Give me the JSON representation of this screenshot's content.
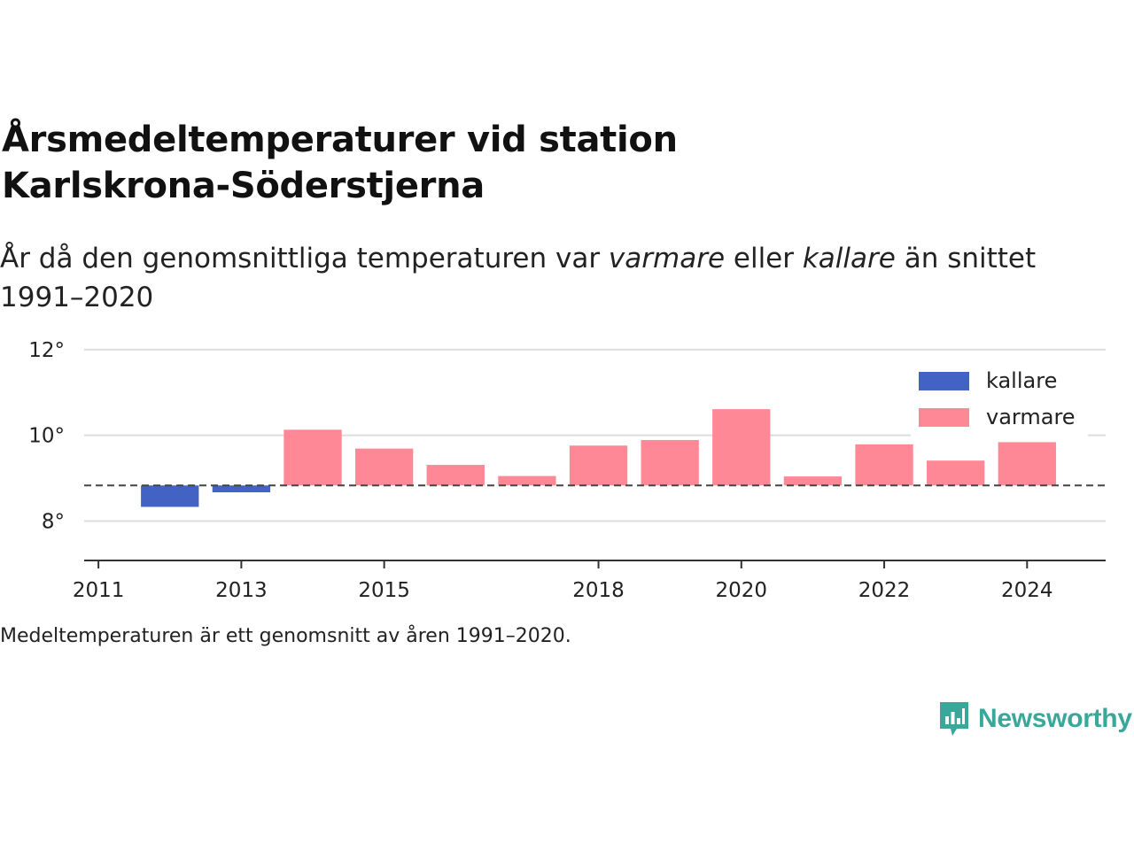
{
  "title_line1": "Årsmedeltemperaturer vid station",
  "title_line2": "Karlskrona-Söderstjerna",
  "subtitle": {
    "part1": "År då den genomsnittliga temperaturen var ",
    "warmer": "varmare",
    "part2": " eller ",
    "colder": "kallare",
    "part3": " än snittet 1991–2020"
  },
  "footnote": "Medeltemperaturen är ett genomsnitt av åren 1991–2020.",
  "logo": {
    "text": "Newsworthy",
    "icon": "newsworthy-chart-bubble-icon",
    "color": "#3aa79a"
  },
  "chart_data": {
    "type": "bar",
    "baseline": 8.83,
    "baseline_style": "dashed",
    "x": [
      2011,
      2012,
      2013,
      2014,
      2015,
      2016,
      2017,
      2018,
      2019,
      2020,
      2021,
      2022,
      2023,
      2024
    ],
    "values": [
      8.83,
      8.33,
      8.67,
      10.13,
      9.69,
      9.31,
      9.05,
      9.76,
      9.89,
      10.61,
      9.04,
      9.79,
      9.41,
      9.84
    ],
    "xticks": [
      2011,
      2013,
      2015,
      2018,
      2020,
      2022,
      2024
    ],
    "yticks": [
      8,
      10,
      12
    ],
    "ytick_suffix": "°",
    "ylim": [
      7.1,
      12.1
    ],
    "xlim": [
      2010.8,
      2025.1
    ],
    "grid": true,
    "legend_position": "top-right",
    "legend": [
      {
        "name": "kallare",
        "color": "#4263c4"
      },
      {
        "name": "varmare",
        "color": "#ff8896"
      }
    ]
  }
}
